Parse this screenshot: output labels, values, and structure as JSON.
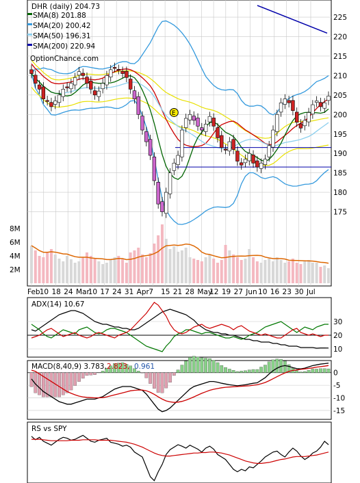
{
  "chart_data": [
    {
      "type": "candlestick",
      "panel": "price",
      "title": "DHR (daily) 204.73",
      "watermark": "OptionChance.com",
      "x_labels": [
        "Feb",
        "10",
        "18",
        "24",
        "Mar",
        "10",
        "17",
        "24",
        "31",
        "Apr",
        "7",
        "15",
        "21",
        "28",
        "May",
        "12",
        "19",
        "27",
        "Jun",
        "10",
        "16",
        "23",
        "30",
        "Jul"
      ],
      "y_ticks": [
        175,
        180,
        185,
        190,
        195,
        200,
        205,
        210,
        215,
        220,
        225
      ],
      "ylim": [
        170,
        228
      ],
      "earnings_marker": "E",
      "horizontal_lines": [
        191.5,
        186.5
      ],
      "legend": [
        {
          "label": "SMA(8) 201.88",
          "color": "#006400"
        },
        {
          "label": "SMA(20) 200.42",
          "color": "#3399dd"
        },
        {
          "label": "SMA(50) 196.31",
          "color": "#8ccfee"
        },
        {
          "label": "SMA(200) 220.94",
          "color": "#0000aa"
        }
      ],
      "close": [
        210.5,
        208.0,
        206.5,
        204.0,
        203.5,
        202.0,
        203.5,
        205.0,
        206.5,
        207.0,
        208.0,
        209.5,
        211.0,
        210.0,
        208.0,
        206.5,
        205.0,
        206.0,
        208.0,
        210.0,
        211.5,
        212.0,
        211.5,
        210.5,
        209.5,
        206.5,
        204.0,
        200.0,
        196.0,
        193.0,
        189.5,
        183.0,
        177.0,
        175.0,
        180.0,
        185.0,
        187.5,
        189.5,
        196.0,
        199.0,
        200.0,
        198.5,
        197.0,
        196.0,
        197.5,
        199.5,
        197.0,
        194.0,
        191.5,
        191.0,
        193.0,
        191.0,
        188.0,
        187.0,
        188.5,
        190.0,
        187.5,
        186.5,
        187.5,
        188.5,
        192.0,
        196.0,
        200.0,
        203.0,
        204.0,
        203.0,
        201.0,
        198.0,
        196.5,
        198.5,
        200.5,
        202.5,
        203.5,
        202.0,
        203.0,
        204.73
      ],
      "sma8_last": 201.88,
      "sma20_last": 200.42,
      "sma50_last": 196.31,
      "sma200_last": 220.94,
      "volume_ticks": [
        "2M",
        "4M",
        "6M",
        "8M"
      ],
      "volume": [
        5.5,
        4.8,
        4.0,
        3.8,
        4.5,
        5.0,
        4.2,
        3.6,
        3.2,
        4.0,
        3.5,
        3.0,
        3.2,
        3.8,
        4.5,
        4.0,
        3.6,
        3.2,
        2.8,
        3.0,
        3.5,
        3.8,
        4.0,
        3.6,
        3.0,
        4.5,
        4.8,
        5.2,
        4.2,
        3.8,
        4.4,
        5.8,
        7.0,
        8.6,
        6.5,
        5.0,
        5.4,
        4.6,
        4.8,
        5.2,
        3.8,
        3.6,
        3.4,
        3.2,
        3.8,
        4.2,
        3.6,
        3.0,
        3.4,
        5.6,
        4.8,
        4.2,
        3.8,
        3.4,
        3.6,
        5.0,
        3.8,
        3.2,
        3.0,
        3.4,
        3.6,
        3.2,
        3.8,
        3.4,
        3.0,
        3.2,
        3.6,
        3.0,
        2.8,
        3.2,
        3.4,
        3.0,
        3.0,
        2.4,
        2.6,
        2.2
      ]
    },
    {
      "type": "line",
      "panel": "adx",
      "label": "ADX(14) 10.67",
      "y_ticks": [
        10,
        20,
        30
      ],
      "ylim": [
        5,
        46
      ],
      "series": [
        {
          "name": "ADX",
          "color": "#000000",
          "values": [
            24,
            23,
            25,
            27,
            29,
            31,
            33,
            35,
            36,
            37,
            38,
            38,
            37,
            36,
            34,
            32,
            30,
            29,
            28,
            28,
            27,
            26,
            26,
            25,
            25,
            24,
            24,
            25,
            27,
            29,
            31,
            33,
            35,
            37,
            38,
            39,
            38,
            37,
            36,
            35,
            33,
            31,
            28,
            26,
            24,
            23,
            22,
            22,
            21,
            21,
            20,
            20,
            19,
            18,
            17,
            17,
            16,
            16,
            15,
            15,
            15,
            14,
            14,
            13,
            13,
            12,
            12,
            12,
            11,
            11,
            11,
            11,
            10.5,
            10.7,
            10.7,
            10.67
          ]
        },
        {
          "name": "+DI",
          "color": "#007700",
          "values": [
            28,
            26,
            24,
            21,
            19,
            18,
            20,
            22,
            24,
            23,
            22,
            21,
            24,
            25,
            26,
            24,
            22,
            21,
            22,
            24,
            25,
            25,
            24,
            23,
            22,
            20,
            18,
            16,
            14,
            12,
            11,
            10,
            9,
            8,
            12,
            15,
            19,
            21,
            22,
            24,
            24,
            23,
            22,
            21,
            22,
            22,
            21,
            20,
            19,
            18,
            18,
            19,
            18,
            17,
            18,
            20,
            21,
            22,
            24,
            26,
            27,
            28,
            29,
            30,
            28,
            26,
            24,
            22,
            24,
            26,
            25,
            24,
            26,
            27,
            28,
            28
          ]
        },
        {
          "name": "-DI",
          "color": "#cc0000",
          "values": [
            18,
            19,
            20,
            22,
            24,
            25,
            23,
            21,
            19,
            20,
            21,
            22,
            20,
            19,
            18,
            19,
            21,
            22,
            21,
            20,
            19,
            18,
            20,
            21,
            22,
            24,
            27,
            30,
            33,
            36,
            40,
            44,
            42,
            38,
            34,
            28,
            24,
            22,
            21,
            22,
            24,
            26,
            27,
            28,
            26,
            25,
            26,
            27,
            28,
            27,
            26,
            24,
            26,
            27,
            25,
            23,
            22,
            21,
            20,
            21,
            20,
            19,
            18,
            18,
            20,
            22,
            24,
            25,
            22,
            21,
            20,
            21,
            20,
            19,
            20,
            20
          ]
        }
      ]
    },
    {
      "type": "line",
      "panel": "macd",
      "label": "MACD(8,40,9) 3.783,",
      "signal_label": "2.823,",
      "hist_label": "0.961",
      "y_ticks": [
        0,
        -5,
        -10,
        -15
      ],
      "ylim": [
        -18,
        4
      ],
      "series": [
        {
          "name": "MACD",
          "color": "#000000",
          "values": [
            -2.5,
            -4.5,
            -6.0,
            -7.5,
            -8.5,
            -9.5,
            -10.5,
            -11.5,
            -12.0,
            -12.5,
            -12.5,
            -12.0,
            -11.5,
            -11.0,
            -10.5,
            -10.5,
            -10.5,
            -10.0,
            -9.5,
            -8.5,
            -7.5,
            -6.5,
            -6.0,
            -5.5,
            -5.5,
            -5.5,
            -6.0,
            -6.5,
            -7.0,
            -8.5,
            -10.5,
            -12.5,
            -14.5,
            -15.5,
            -15.0,
            -14.0,
            -12.5,
            -11.0,
            -9.5,
            -8.0,
            -6.5,
            -5.5,
            -5.0,
            -4.5,
            -4.0,
            -3.5,
            -3.5,
            -3.8,
            -4.2,
            -4.5,
            -4.8,
            -5.0,
            -5.2,
            -5.0,
            -4.8,
            -4.5,
            -4.2,
            -4.0,
            -3.0,
            -2.0,
            -0.5,
            0.8,
            1.8,
            2.5,
            2.8,
            2.5,
            2.0,
            1.6,
            1.5,
            1.8,
            2.3,
            2.8,
            3.1,
            3.4,
            3.6,
            3.783
          ]
        },
        {
          "name": "Signal",
          "color": "#cc0000",
          "values": [
            1.0,
            0.5,
            -0.5,
            -1.5,
            -2.5,
            -3.5,
            -4.5,
            -5.5,
            -6.5,
            -7.5,
            -8.2,
            -8.8,
            -9.3,
            -9.6,
            -9.8,
            -9.9,
            -10.0,
            -10.0,
            -9.9,
            -9.6,
            -9.2,
            -8.8,
            -8.4,
            -8.0,
            -7.6,
            -7.2,
            -7.0,
            -6.9,
            -6.9,
            -7.2,
            -7.8,
            -8.6,
            -9.6,
            -10.5,
            -11.2,
            -11.6,
            -11.8,
            -11.7,
            -11.4,
            -10.9,
            -10.3,
            -9.6,
            -8.9,
            -8.2,
            -7.6,
            -7.0,
            -6.6,
            -6.3,
            -6.0,
            -5.8,
            -5.7,
            -5.6,
            -5.5,
            -5.4,
            -5.3,
            -5.2,
            -5.0,
            -4.8,
            -4.4,
            -3.9,
            -3.2,
            -2.4,
            -1.6,
            -0.8,
            -0.1,
            0.5,
            0.9,
            1.1,
            1.3,
            1.5,
            1.7,
            1.9,
            2.2,
            2.4,
            2.6,
            2.823
          ]
        }
      ],
      "histogram_colors": {
        "up": "#88d088",
        "down": "#e0a0b0"
      }
    },
    {
      "type": "line",
      "panel": "rs",
      "label": "RS vs SPY",
      "series": [
        {
          "name": "RS",
          "color": "#000000",
          "values": [
            0.92,
            0.85,
            0.9,
            0.82,
            0.78,
            0.74,
            0.8,
            0.86,
            0.9,
            0.88,
            0.84,
            0.86,
            0.9,
            0.94,
            0.88,
            0.82,
            0.8,
            0.84,
            0.86,
            0.88,
            0.8,
            0.78,
            0.76,
            0.72,
            0.74,
            0.7,
            0.6,
            0.55,
            0.5,
            0.3,
            0.1,
            0.02,
            0.2,
            0.35,
            0.55,
            0.65,
            0.7,
            0.75,
            0.72,
            0.68,
            0.74,
            0.7,
            0.66,
            0.6,
            0.68,
            0.72,
            0.66,
            0.55,
            0.5,
            0.45,
            0.35,
            0.25,
            0.2,
            0.25,
            0.22,
            0.3,
            0.28,
            0.35,
            0.42,
            0.5,
            0.55,
            0.6,
            0.62,
            0.55,
            0.5,
            0.6,
            0.68,
            0.62,
            0.52,
            0.45,
            0.5,
            0.58,
            0.62,
            0.7,
            0.82,
            0.75
          ]
        },
        {
          "name": "RS avg",
          "color": "#cc0000",
          "values": [
            0.86,
            0.86,
            0.86,
            0.85,
            0.84,
            0.83,
            0.83,
            0.83,
            0.83,
            0.83,
            0.84,
            0.84,
            0.84,
            0.85,
            0.85,
            0.85,
            0.85,
            0.84,
            0.84,
            0.84,
            0.84,
            0.83,
            0.82,
            0.81,
            0.8,
            0.78,
            0.76,
            0.73,
            0.7,
            0.66,
            0.62,
            0.58,
            0.55,
            0.53,
            0.52,
            0.52,
            0.53,
            0.54,
            0.55,
            0.56,
            0.57,
            0.58,
            0.58,
            0.59,
            0.59,
            0.6,
            0.6,
            0.59,
            0.58,
            0.56,
            0.54,
            0.51,
            0.48,
            0.45,
            0.42,
            0.4,
            0.38,
            0.37,
            0.37,
            0.38,
            0.39,
            0.41,
            0.43,
            0.45,
            0.46,
            0.48,
            0.5,
            0.51,
            0.51,
            0.51,
            0.52,
            0.53,
            0.54,
            0.56,
            0.58,
            0.6
          ]
        }
      ]
    }
  ]
}
